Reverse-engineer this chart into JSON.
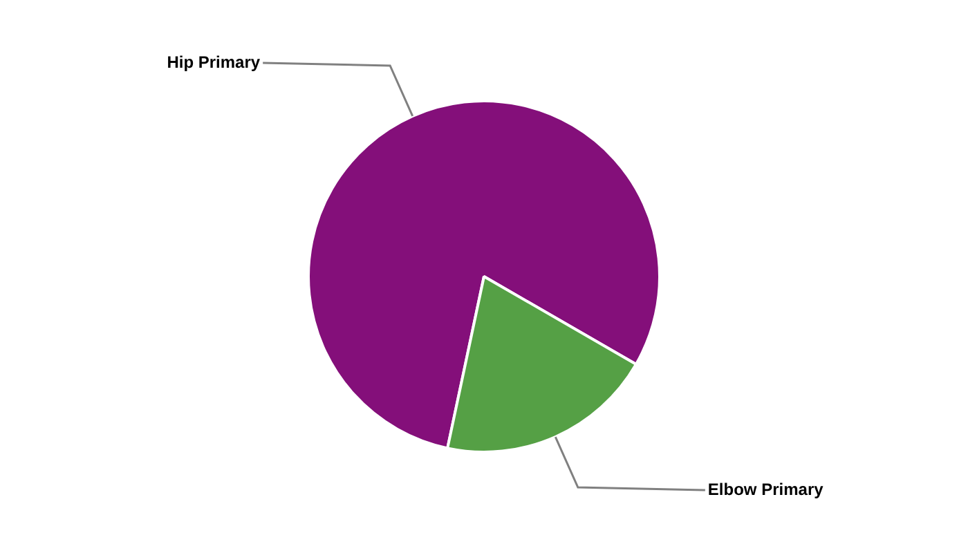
{
  "chart_data": {
    "type": "pie",
    "categories": [
      "Hip Primary",
      "Elbow Primary"
    ],
    "values": [
      80,
      20
    ],
    "colors": [
      "#840f7a",
      "#55a045"
    ],
    "legend": false
  }
}
